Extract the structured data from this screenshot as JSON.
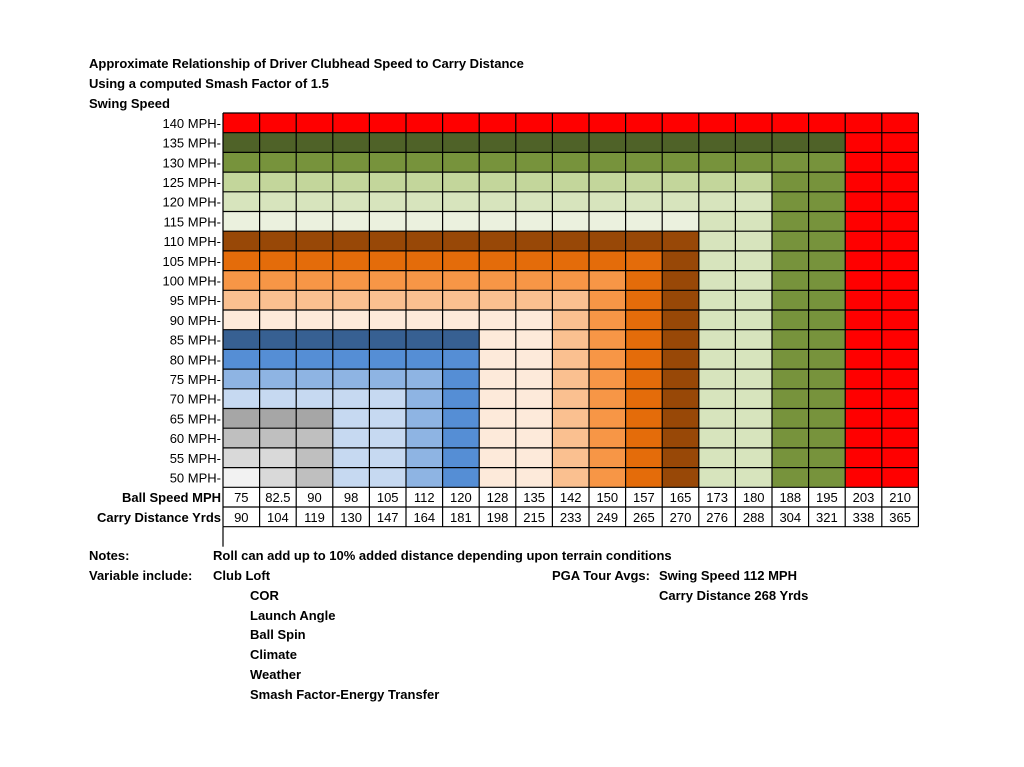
{
  "chart_data": {
    "type": "heatmap",
    "title": "Approximate Relationship of Driver Clubhead Speed to Carry Distance",
    "subtitle": "Using a computed Smash Factor of 1.5",
    "ylabel": "Swing Speed",
    "y_ticks": [
      "140 MPH-",
      "135 MPH-",
      "130 MPH-",
      "125 MPH-",
      "120 MPH-",
      "115 MPH-",
      "110 MPH-",
      "105 MPH-",
      "100 MPH-",
      "95 MPH-",
      "90 MPH-",
      "85 MPH-",
      "80 MPH-",
      "75 MPH-",
      "70 MPH-",
      "65 MPH-",
      "60 MPH-",
      "55 MPH-",
      "50 MPH-"
    ],
    "swing_speeds_mph": [
      140,
      135,
      130,
      125,
      120,
      115,
      110,
      105,
      100,
      95,
      90,
      85,
      80,
      75,
      70,
      65,
      60,
      55,
      50
    ],
    "ball_speed_label": "Ball Speed MPH",
    "carry_label": "Carry Distance Yrds",
    "ball_speed_mph": [
      "75",
      "82.5",
      "90",
      "98",
      "105",
      "112",
      "120",
      "128",
      "135",
      "142",
      "150",
      "157",
      "165",
      "173",
      "180",
      "188",
      "195",
      "203",
      "210"
    ],
    "carry_distance_yrds": [
      "90",
      "104",
      "119",
      "130",
      "147",
      "164",
      "181",
      "198",
      "215",
      "233",
      "249",
      "265",
      "270",
      "276",
      "288",
      "304",
      "321",
      "338",
      "365"
    ],
    "colors": {
      "140": "#ff0000",
      "135": "#4f6228",
      "130": "#77933c",
      "125": "#c3d69b",
      "120": "#d7e4bd",
      "115": "#ebf1de",
      "110": "#984807",
      "105": "#e46c0a",
      "100": "#f79646",
      "95": "#fac090",
      "90": "#fdeada",
      "85": "#376092",
      "80": "#558ed5",
      "75": "#8eb4e3",
      "70": "#c6d9f1",
      "65": "#a6a6a6",
      "60": "#bfbfbf",
      "55": "#d9d9d9",
      "50": "#f2f2f2"
    }
  },
  "notes": {
    "notes_label": "Notes:",
    "notes_text": "Roll can add up to 10% added distance depending upon terrain conditions",
    "variables_label": "Variable include:",
    "variables": [
      "Club Loft",
      "COR",
      "Launch Angle",
      "Ball Spin",
      "Climate",
      "Weather",
      "Smash Factor-Energy Transfer"
    ],
    "pga_label": "PGA Tour Avgs:",
    "pga_swing": "Swing Speed 112 MPH",
    "pga_carry": "Carry Distance 268 Yrds"
  }
}
